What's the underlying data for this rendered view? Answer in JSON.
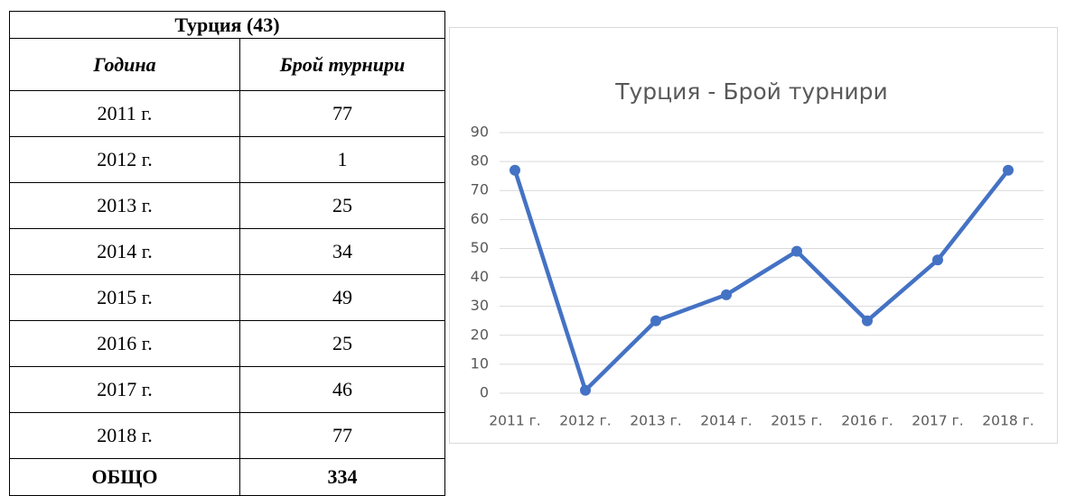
{
  "table": {
    "title": "Турция (43)",
    "columns": [
      "Година",
      "Брой турнири"
    ],
    "rows": [
      [
        "2011 г.",
        77
      ],
      [
        "2012 г.",
        1
      ],
      [
        "2013 г.",
        25
      ],
      [
        "2014 г.",
        34
      ],
      [
        "2015 г.",
        49
      ],
      [
        "2016 г.",
        25
      ],
      [
        "2017 г.",
        46
      ],
      [
        "2018 г.",
        77
      ]
    ],
    "total": [
      "ОБЩО",
      334
    ]
  },
  "chart_data": {
    "type": "line",
    "title": "Турция - Брой турнири",
    "categories": [
      "2011 г.",
      "2012 г.",
      "2013 г.",
      "2014 г.",
      "2015 г.",
      "2016 г.",
      "2017 г.",
      "2018 г."
    ],
    "values": [
      77,
      1,
      25,
      34,
      49,
      25,
      46,
      77
    ],
    "color": "#4472c4",
    "ylim": [
      0,
      90
    ],
    "yticks": [
      0,
      10,
      20,
      30,
      40,
      50,
      60,
      70,
      80,
      90
    ],
    "grid": true
  }
}
